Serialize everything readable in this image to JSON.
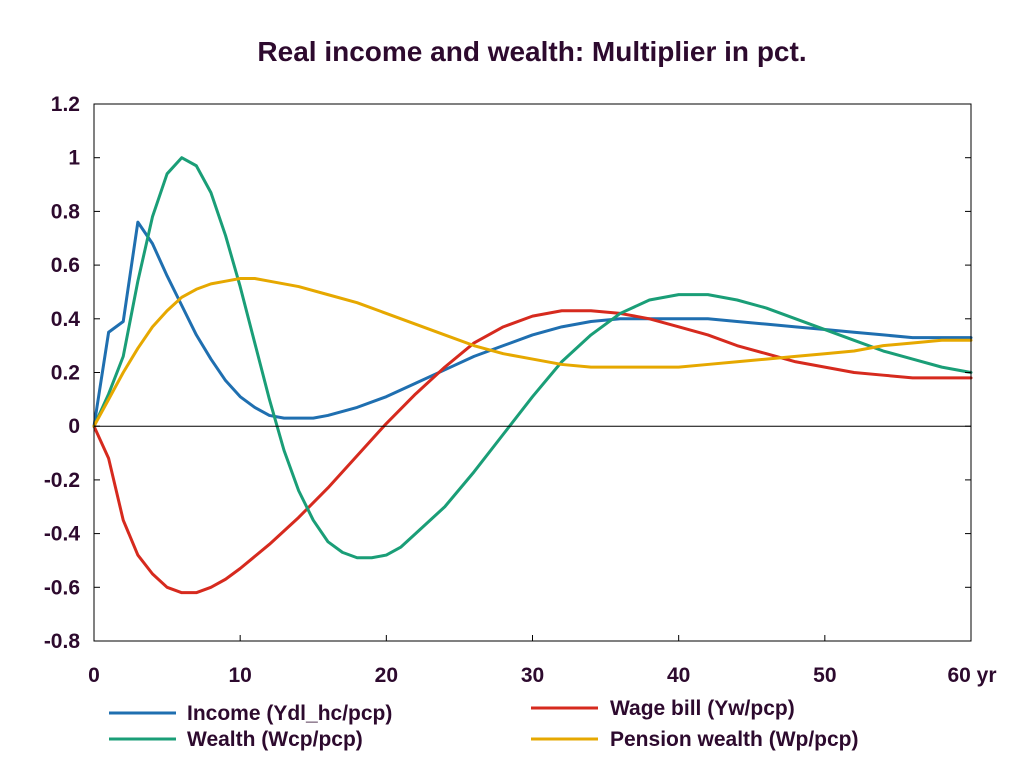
{
  "chart_data": {
    "type": "line",
    "title": "Real income and wealth: Multiplier in pct.",
    "x_unit_label": "yr",
    "xlim": [
      0,
      60
    ],
    "ylim": [
      -0.8,
      1.2
    ],
    "x_ticks": [
      0,
      10,
      20,
      30,
      40,
      50,
      60
    ],
    "x_tick_labels": [
      "0",
      "10",
      "20",
      "30",
      "40",
      "50",
      "60 yr"
    ],
    "y_ticks": [
      1.2,
      1,
      0.8,
      0.6,
      0.4,
      0.2,
      0,
      -0.2,
      -0.4,
      -0.6,
      -0.8
    ],
    "y_tick_labels": [
      "1.2",
      "1",
      "0.8",
      "0.6",
      "0.4",
      "0.2",
      "0",
      "-0.2",
      "-0.4",
      "-0.6",
      "-0.8"
    ],
    "grid": false,
    "zero_line": true,
    "legend_position": "bottom",
    "colors": {
      "text": "#2d0a2e",
      "axis": "#000000"
    },
    "series": [
      {
        "name": "Income (Ydl_hc/pcp)",
        "color": "#1f6fb0",
        "x": [
          0,
          1,
          2,
          3,
          4,
          5,
          6,
          7,
          8,
          9,
          10,
          11,
          12,
          13,
          14,
          15,
          16,
          18,
          20,
          22,
          24,
          26,
          28,
          30,
          32,
          34,
          36,
          38,
          40,
          42,
          44,
          46,
          48,
          50,
          52,
          54,
          56,
          58,
          60
        ],
        "y": [
          0,
          0.35,
          0.39,
          0.76,
          0.68,
          0.56,
          0.45,
          0.34,
          0.25,
          0.17,
          0.11,
          0.07,
          0.04,
          0.03,
          0.03,
          0.03,
          0.04,
          0.07,
          0.11,
          0.16,
          0.21,
          0.26,
          0.3,
          0.34,
          0.37,
          0.39,
          0.4,
          0.4,
          0.4,
          0.4,
          0.39,
          0.38,
          0.37,
          0.36,
          0.35,
          0.34,
          0.33,
          0.33,
          0.33
        ]
      },
      {
        "name": "Wage bill (Yw/pcp)",
        "color": "#d62a1e",
        "x": [
          0,
          1,
          2,
          3,
          4,
          5,
          6,
          7,
          8,
          9,
          10,
          12,
          14,
          16,
          18,
          20,
          22,
          24,
          26,
          28,
          30,
          32,
          34,
          36,
          38,
          40,
          42,
          44,
          46,
          48,
          50,
          52,
          54,
          56,
          58,
          60
        ],
        "y": [
          0,
          -0.12,
          -0.35,
          -0.48,
          -0.55,
          -0.6,
          -0.62,
          -0.62,
          -0.6,
          -0.57,
          -0.53,
          -0.44,
          -0.34,
          -0.23,
          -0.11,
          0.01,
          0.12,
          0.22,
          0.31,
          0.37,
          0.41,
          0.43,
          0.43,
          0.42,
          0.4,
          0.37,
          0.34,
          0.3,
          0.27,
          0.24,
          0.22,
          0.2,
          0.19,
          0.18,
          0.18,
          0.18
        ]
      },
      {
        "name": "Wealth (Wcp/pcp)",
        "color": "#1a9e77",
        "x": [
          0,
          1,
          2,
          3,
          4,
          5,
          6,
          7,
          8,
          9,
          10,
          11,
          12,
          13,
          14,
          15,
          16,
          17,
          18,
          19,
          20,
          21,
          22,
          24,
          26,
          28,
          30,
          32,
          34,
          36,
          38,
          40,
          42,
          44,
          46,
          48,
          50,
          52,
          54,
          56,
          58,
          60
        ],
        "y": [
          0,
          0.12,
          0.26,
          0.54,
          0.78,
          0.94,
          1.0,
          0.97,
          0.87,
          0.71,
          0.52,
          0.31,
          0.1,
          -0.09,
          -0.24,
          -0.35,
          -0.43,
          -0.47,
          -0.49,
          -0.49,
          -0.48,
          -0.45,
          -0.4,
          -0.3,
          -0.17,
          -0.03,
          0.11,
          0.24,
          0.34,
          0.42,
          0.47,
          0.49,
          0.49,
          0.47,
          0.44,
          0.4,
          0.36,
          0.32,
          0.28,
          0.25,
          0.22,
          0.2
        ]
      },
      {
        "name": "Pension wealth (Wp/pcp)",
        "color": "#e6a800",
        "x": [
          0,
          1,
          2,
          3,
          4,
          5,
          6,
          7,
          8,
          9,
          10,
          11,
          12,
          14,
          16,
          18,
          20,
          22,
          24,
          26,
          28,
          30,
          32,
          34,
          36,
          38,
          40,
          42,
          44,
          46,
          48,
          50,
          52,
          54,
          56,
          58,
          60
        ],
        "y": [
          0,
          0.1,
          0.2,
          0.29,
          0.37,
          0.43,
          0.48,
          0.51,
          0.53,
          0.54,
          0.55,
          0.55,
          0.54,
          0.52,
          0.49,
          0.46,
          0.42,
          0.38,
          0.34,
          0.3,
          0.27,
          0.25,
          0.23,
          0.22,
          0.22,
          0.22,
          0.22,
          0.23,
          0.24,
          0.25,
          0.26,
          0.27,
          0.28,
          0.3,
          0.31,
          0.32,
          0.32
        ]
      }
    ]
  }
}
